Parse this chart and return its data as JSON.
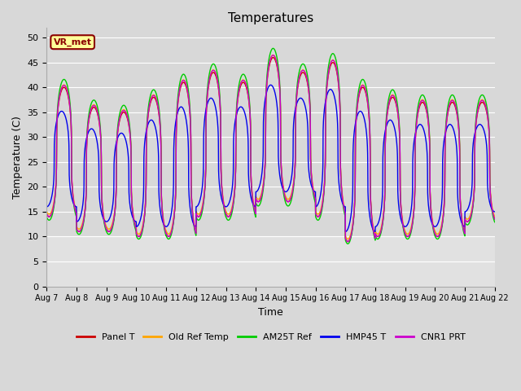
{
  "title": "Temperatures",
  "xlabel": "Time",
  "ylabel": "Temperature (C)",
  "ylim": [
    0,
    52
  ],
  "yticks": [
    0,
    5,
    10,
    15,
    20,
    25,
    30,
    35,
    40,
    45,
    50
  ],
  "plot_bg_color": "#d8d8d8",
  "lower_bg_color": "#f0f0f0",
  "grid_color": "#ffffff",
  "annotation_text": "VR_met",
  "annotation_bg": "#ffff99",
  "annotation_border": "#8b0000",
  "series_names": [
    "Panel T",
    "Old Ref Temp",
    "AM25T Ref",
    "HMP45 T",
    "CNR1 PRT"
  ],
  "series_colors": [
    "#cc0000",
    "#ffa500",
    "#00cc00",
    "#0000ee",
    "#cc00cc"
  ],
  "series_lw": [
    1.0,
    1.0,
    1.0,
    1.0,
    1.0
  ],
  "date_labels": [
    "Aug 7",
    "Aug 8",
    "Aug 9",
    "Aug 10",
    "Aug 11",
    "Aug 12",
    "Aug 13",
    "Aug 14",
    "Aug 15",
    "Aug 16",
    "Aug 17",
    "Aug 18",
    "Aug 19",
    "Aug 20",
    "Aug 21",
    "Aug 22"
  ],
  "n_days": 15,
  "ppd": 288,
  "daily_mins": [
    14,
    11,
    11,
    10,
    10,
    14,
    14,
    17,
    17,
    14,
    9,
    10,
    10,
    10,
    13
  ],
  "daily_maxs": [
    40,
    36,
    35,
    38,
    41,
    43,
    41,
    46,
    43,
    45,
    40,
    38,
    37,
    37,
    37
  ],
  "hmp45_lag": 0.08,
  "peak_time": 0.58,
  "asymmetry": 3.0
}
